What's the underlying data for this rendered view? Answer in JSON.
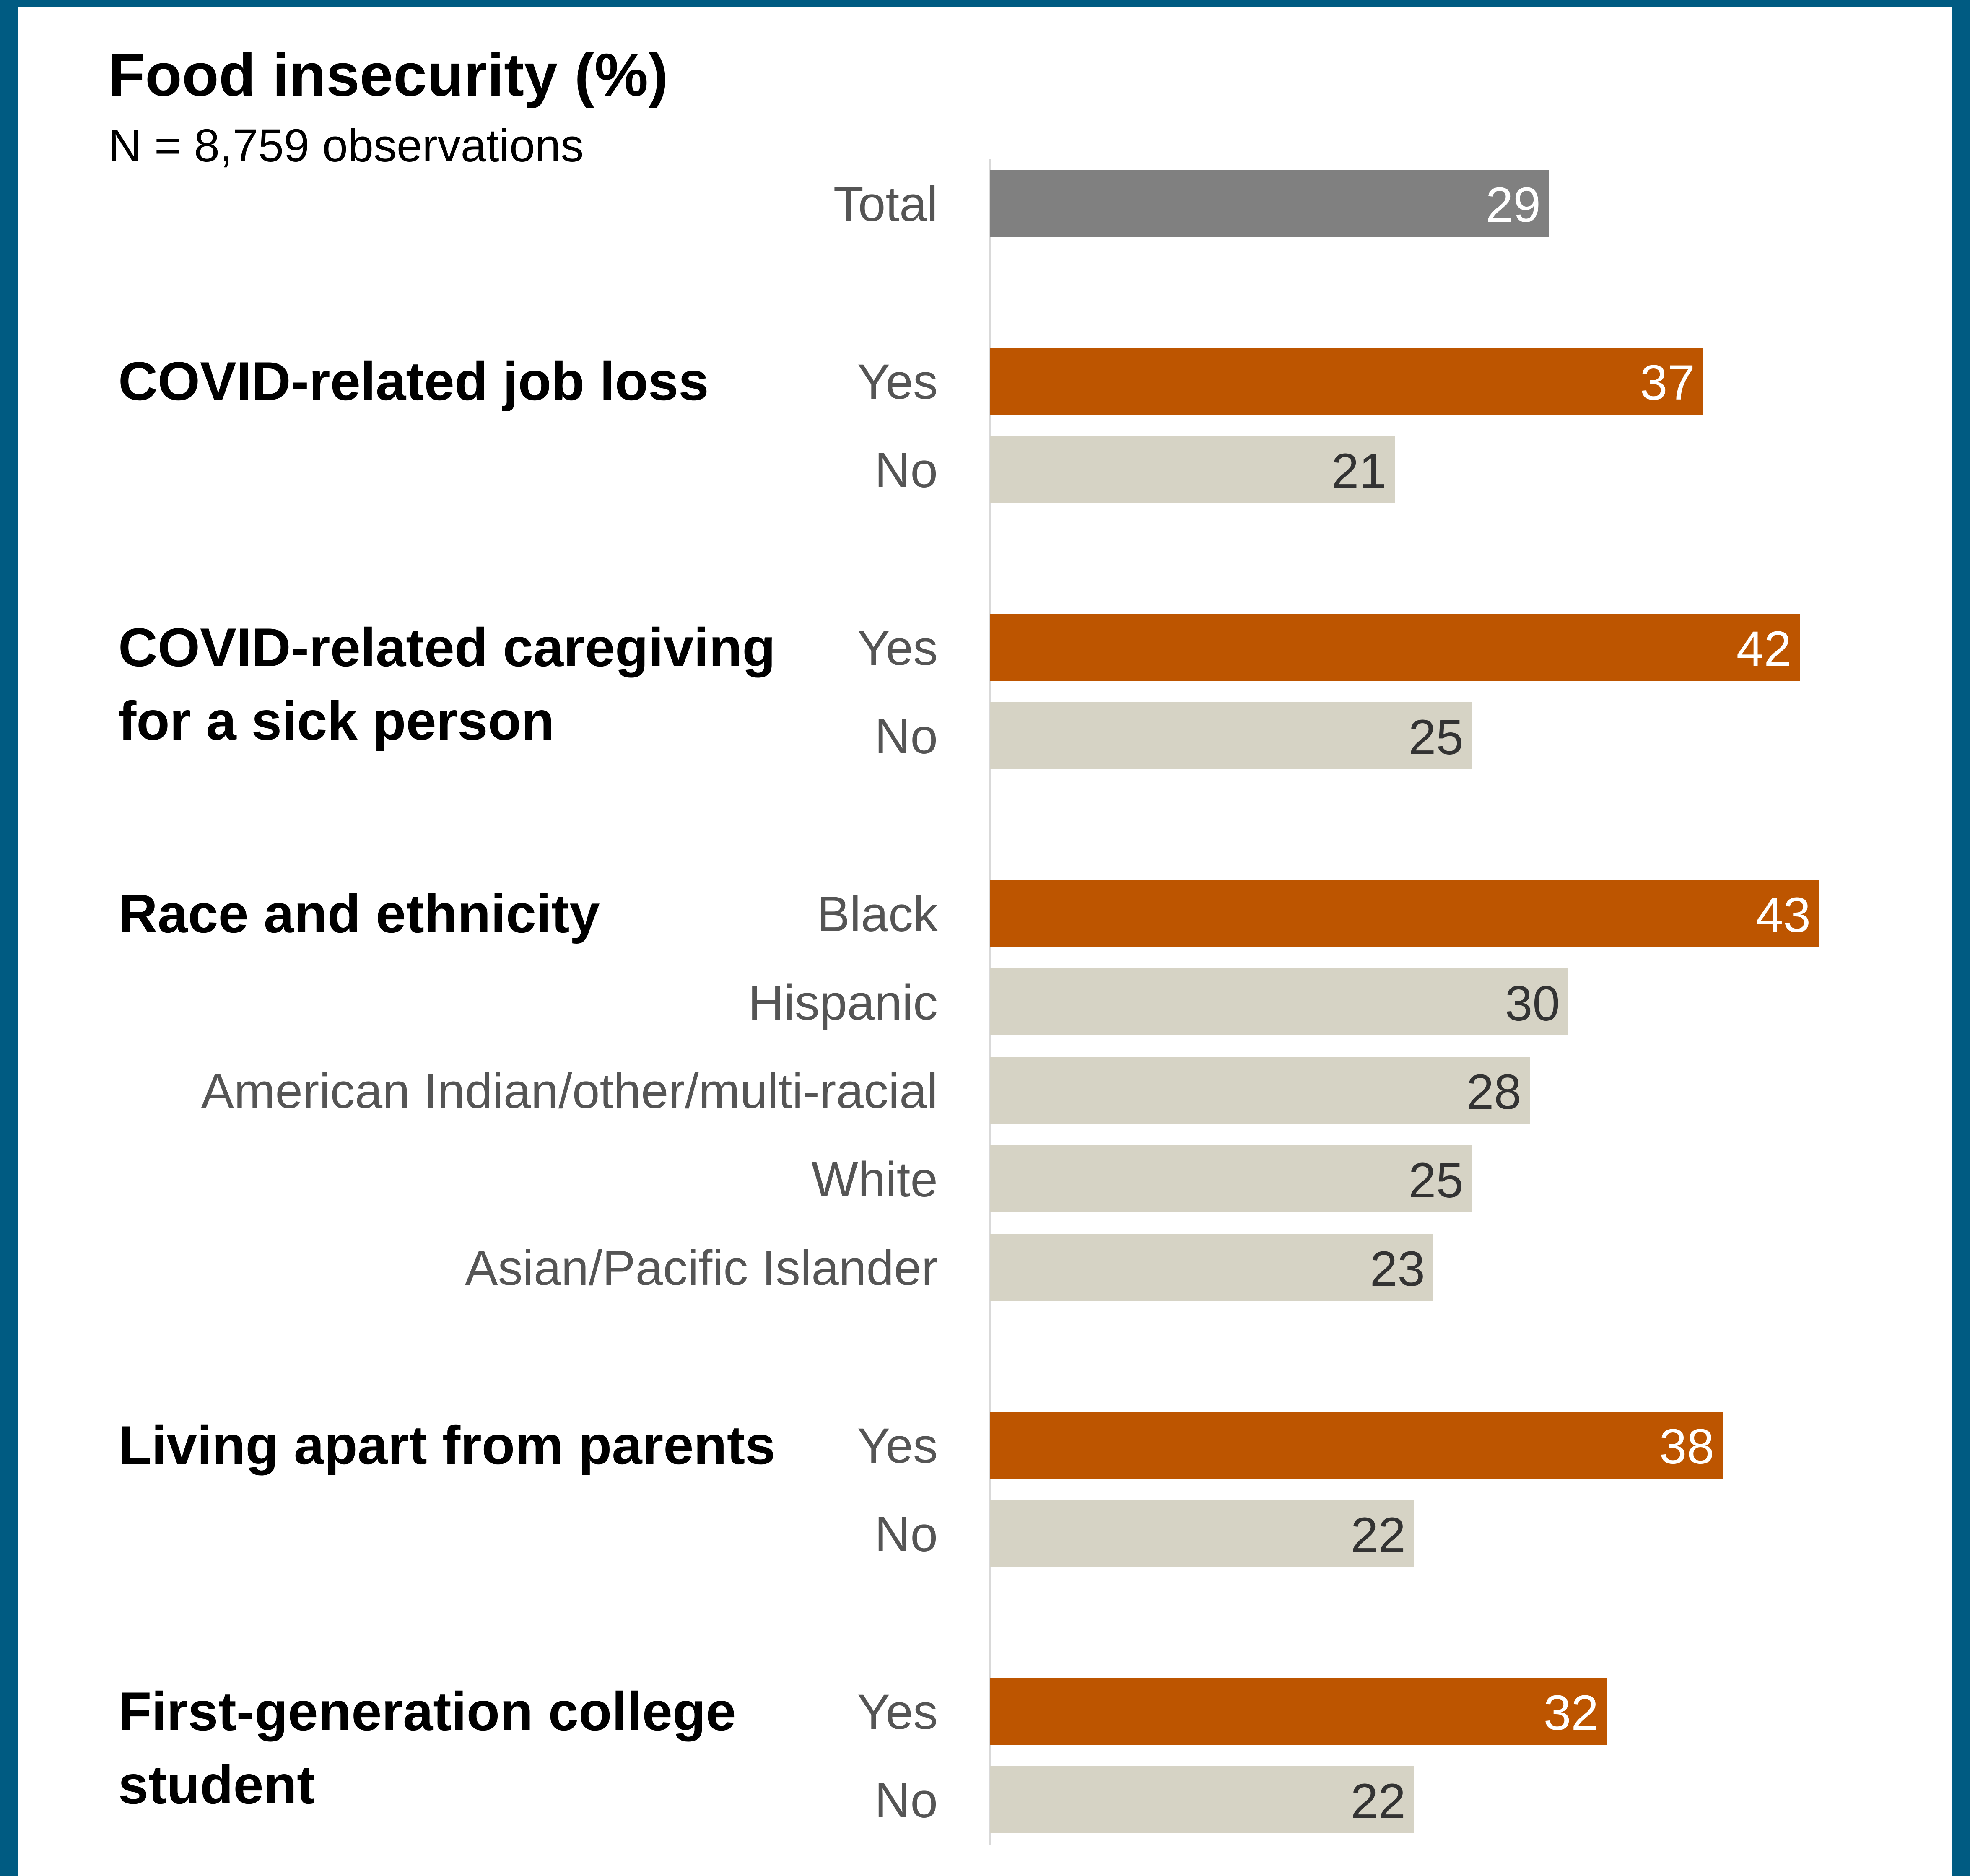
{
  "chart_data": {
    "type": "bar",
    "orientation": "horizontal",
    "title": "Food insecurity (%)",
    "subtitle": "N = 8,759 observations",
    "xlim": [
      0,
      46
    ],
    "grid": false,
    "groups": [
      {
        "label": "",
        "bars": [
          {
            "category": "Total",
            "value": 29,
            "highlight": "total"
          }
        ]
      },
      {
        "label": "COVID-related job loss",
        "bars": [
          {
            "category": "Yes",
            "value": 37,
            "highlight": "yes"
          },
          {
            "category": "No",
            "value": 21,
            "highlight": "no"
          }
        ]
      },
      {
        "label": "COVID-related caregiving for a sick person",
        "label_lines": [
          "COVID-related caregiving",
          "for a sick person"
        ],
        "bars": [
          {
            "category": "Yes",
            "value": 42,
            "highlight": "yes"
          },
          {
            "category": "No",
            "value": 25,
            "highlight": "no"
          }
        ]
      },
      {
        "label": "Race and ethnicity",
        "bars": [
          {
            "category": "Black",
            "value": 43,
            "highlight": "yes"
          },
          {
            "category": "Hispanic",
            "value": 30,
            "highlight": "no"
          },
          {
            "category": "American Indian/other/multi-racial",
            "value": 28,
            "highlight": "no"
          },
          {
            "category": "White",
            "value": 25,
            "highlight": "no"
          },
          {
            "category": "Asian/Pacific Islander",
            "value": 23,
            "highlight": "no"
          }
        ]
      },
      {
        "label": "Living apart from parents",
        "bars": [
          {
            "category": "Yes",
            "value": 38,
            "highlight": "yes"
          },
          {
            "category": "No",
            "value": 22,
            "highlight": "no"
          }
        ]
      },
      {
        "label": "First-generation college student",
        "label_lines": [
          "First-generation college",
          "student"
        ],
        "bars": [
          {
            "category": "Yes",
            "value": 32,
            "highlight": "yes"
          },
          {
            "category": "No",
            "value": 22,
            "highlight": "no"
          }
        ]
      }
    ],
    "colors": {
      "total": "#808080",
      "yes": "#bd5500",
      "no": "#d6d3c5",
      "frame": "#005b82",
      "axis": "#d9d9d9"
    }
  }
}
